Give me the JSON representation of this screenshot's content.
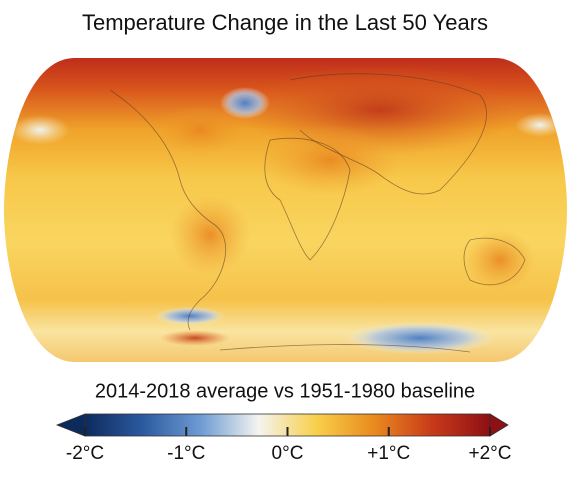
{
  "title": "Temperature Change in the Last 50 Years",
  "subtitle": "2014-2018 average vs 1951-1980 baseline",
  "colorbar": {
    "lim": [
      -2,
      2
    ],
    "ticks": [
      {
        "value": -2,
        "label": "-2°C"
      },
      {
        "value": -1,
        "label": "-1°C"
      },
      {
        "value": 0,
        "label": "0°C"
      },
      {
        "value": 1,
        "label": "+1°C"
      },
      {
        "value": 2,
        "label": "+2°C"
      }
    ],
    "colors": [
      "#0d2a5c",
      "#2c5aa0",
      "#6e9bd3",
      "#f4f4f0",
      "#f8cf4a",
      "#e98a1f",
      "#c83a1a",
      "#8e0f14"
    ]
  }
}
